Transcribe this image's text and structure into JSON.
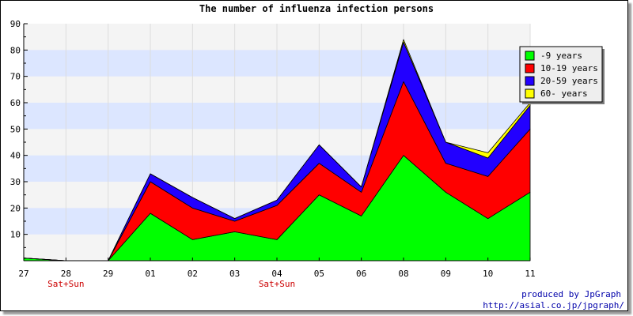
{
  "chart_data": {
    "type": "area",
    "stacked": true,
    "title": "The number of influenza infection persons",
    "xlabel": "",
    "ylabel": "",
    "categories": [
      "27",
      "28",
      "29",
      "01",
      "02",
      "03",
      "04",
      "05",
      "06",
      "08",
      "09",
      "10",
      "11"
    ],
    "ylim": [
      0,
      90
    ],
    "yticks": [
      10,
      20,
      30,
      40,
      50,
      60,
      70,
      80,
      90
    ],
    "annotations": [
      {
        "category": "28",
        "text": "Sat+Sun"
      },
      {
        "category": "04",
        "text": "Sat+Sun"
      }
    ],
    "legend_position": "top-right",
    "grid": true,
    "series": [
      {
        "name": "-9 years",
        "color": "#00ff00",
        "values": [
          1,
          0,
          0,
          18,
          8,
          11,
          8,
          25,
          17,
          40,
          26,
          16,
          26
        ]
      },
      {
        "name": "10-19 years",
        "color": "#ff0000",
        "values": [
          0,
          0,
          0,
          12,
          12,
          4,
          13,
          12,
          9,
          28,
          11,
          16,
          24
        ]
      },
      {
        "name": "20-59 years",
        "color": "#2200ff",
        "values": [
          0,
          0,
          0,
          3,
          4,
          1,
          2,
          7,
          2,
          15,
          8,
          7,
          9
        ]
      },
      {
        "name": "60- years",
        "color": "#ffff00",
        "values": [
          0,
          0,
          0,
          0,
          0,
          0,
          0,
          0,
          0,
          1,
          0,
          2,
          1
        ]
      }
    ]
  },
  "credits": {
    "line1": "produced by JpGraph",
    "line2": "http://asial.co.jp/jpgraph/"
  }
}
